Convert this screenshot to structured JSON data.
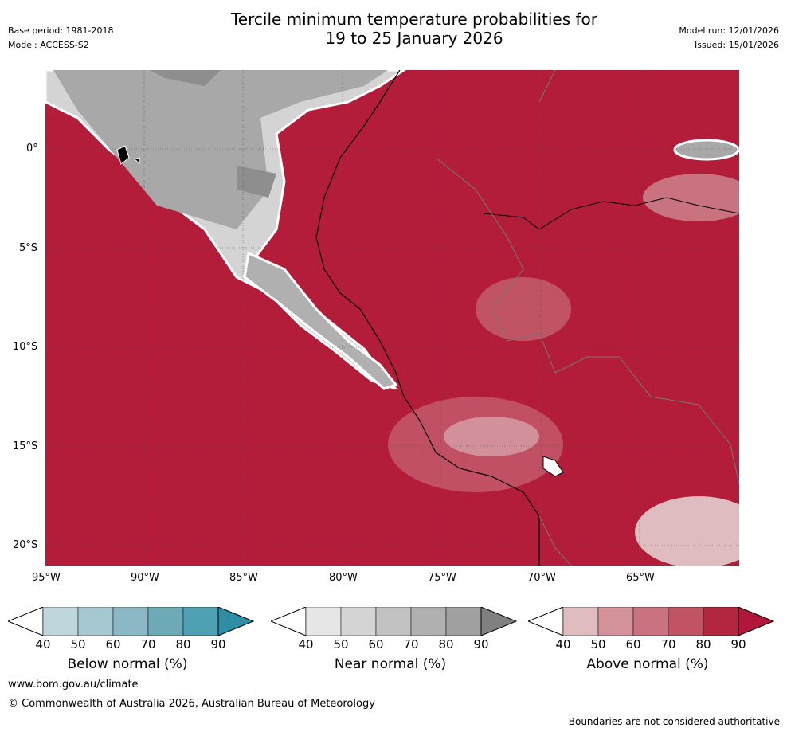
{
  "header": {
    "title_line1": "Tercile minimum temperature probabilities for",
    "title_line2": "19 to 25 January 2026",
    "base_period": "Base period: 1981-2018",
    "model": "Model: ACCESS-S2",
    "model_run": "Model run: 12/01/2026",
    "issued": "Issued: 15/01/2026"
  },
  "map": {
    "lat_labels": [
      "0°",
      "5°S",
      "10°S",
      "15°S",
      "20°S"
    ],
    "lon_labels": [
      "95°W",
      "90°W",
      "85°W",
      "80°W",
      "75°W",
      "70°W",
      "65°W"
    ]
  },
  "legends": [
    {
      "label": "Below normal (%)",
      "ticks": [
        "40",
        "50",
        "60",
        "70",
        "80",
        "90"
      ],
      "colors": [
        "#bfd6dc",
        "#a6c8d0",
        "#8bb8c4",
        "#6ea9b6",
        "#4ea0b2",
        "#2e8fa4"
      ]
    },
    {
      "label": "Near normal (%)",
      "ticks": [
        "40",
        "50",
        "60",
        "70",
        "80",
        "90"
      ],
      "colors": [
        "#e6e6e6",
        "#d4d4d4",
        "#c2c2c2",
        "#b0b0b0",
        "#a0a0a0",
        "#808080"
      ]
    },
    {
      "label": "Above normal (%)",
      "ticks": [
        "40",
        "50",
        "60",
        "70",
        "80",
        "90"
      ],
      "colors": [
        "#dfbcc0",
        "#d39199",
        "#c97380",
        "#c05464",
        "#b3263f",
        "#b0173a"
      ]
    }
  ],
  "footer": {
    "website": "www.bom.gov.au/climate",
    "copyright": "© Commonwealth of Australia 2026, Australian Bureau of Meteorology",
    "disclaimer": "Boundaries are not considered authoritative"
  },
  "colors": {
    "above_max": "#b31d3a",
    "near_max": "#8e8e8e"
  }
}
